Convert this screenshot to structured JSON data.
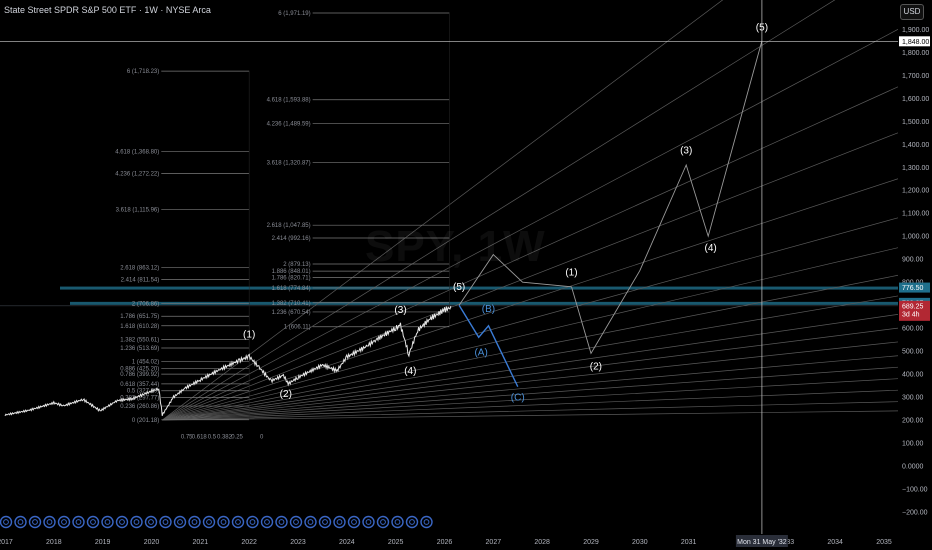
{
  "window": {
    "title": "State Street SPDR S&P 500 ETF · 1W · NYSE Arca",
    "watermark": "SPY, 1W",
    "currency": "USD"
  },
  "colors": {
    "background": "#000000",
    "price": "#e6e6e6",
    "wave_white": "#9a9a9a",
    "wave_blue": "#3a7bd5",
    "fan": "#5a5a5a",
    "fib": "#7a7a7a",
    "zone": "#1f6f8b",
    "price_badge": "#b22833",
    "crosshair": "#cfcfcf"
  },
  "chart_data": {
    "type": "line",
    "title": "State Street SPDR S&P 500 ETF · 1W · NYSE Arca",
    "xlim": [
      2017.0,
      2035.3
    ],
    "ylim": [
      -230,
      2000
    ],
    "x_ticks": [
      "2017",
      "2018",
      "2019",
      "2020",
      "2021",
      "2022",
      "2023",
      "2024",
      "2025",
      "2026",
      "2027",
      "2028",
      "2029",
      "2030",
      "2031",
      "2032",
      "2033",
      "2034",
      "2035"
    ],
    "y_ticks": [
      "1,900.00",
      "1,800.00",
      "1,700.00",
      "1,600.00",
      "1,500.00",
      "1,400.00",
      "1,300.00",
      "1,200.00",
      "1,100.00",
      "1,000.00",
      "900.00",
      "800.00",
      "700.00",
      "600.00",
      "500.00",
      "400.00",
      "300.00",
      "200.00",
      "100.00",
      "0.0000",
      "−100.00",
      "−200.00"
    ],
    "price_series": {
      "name": "SPY",
      "points": [
        [
          2017.0,
          222
        ],
        [
          2017.5,
          243
        ],
        [
          2018.0,
          275
        ],
        [
          2018.2,
          262
        ],
        [
          2018.6,
          290
        ],
        [
          2018.95,
          240
        ],
        [
          2019.3,
          285
        ],
        [
          2019.6,
          292
        ],
        [
          2019.95,
          322
        ],
        [
          2020.15,
          337
        ],
        [
          2020.22,
          222
        ],
        [
          2020.45,
          300
        ],
        [
          2020.7,
          340
        ],
        [
          2021.0,
          375
        ],
        [
          2021.4,
          420
        ],
        [
          2021.8,
          460
        ],
        [
          2022.0,
          477
        ],
        [
          2022.2,
          430
        ],
        [
          2022.45,
          370
        ],
        [
          2022.7,
          395
        ],
        [
          2022.8,
          358
        ],
        [
          2023.0,
          385
        ],
        [
          2023.5,
          440
        ],
        [
          2023.8,
          415
        ],
        [
          2024.0,
          475
        ],
        [
          2024.4,
          520
        ],
        [
          2024.6,
          550
        ],
        [
          2025.0,
          600
        ],
        [
          2025.1,
          612
        ],
        [
          2025.27,
          485
        ],
        [
          2025.45,
          590
        ],
        [
          2025.7,
          640
        ],
        [
          2026.0,
          680
        ],
        [
          2026.15,
          690
        ]
      ]
    },
    "wave_white": {
      "points": [
        [
          2026.3,
          700
        ],
        [
          2027.0,
          920
        ],
        [
          2027.6,
          800
        ],
        [
          2028.6,
          780
        ],
        [
          2029.0,
          490
        ],
        [
          2030.0,
          850
        ],
        [
          2030.95,
          1310
        ],
        [
          2031.4,
          1000
        ],
        [
          2032.5,
          1850
        ]
      ],
      "labels": [
        {
          "text": "(1)",
          "x": 2022.0,
          "y": 560
        },
        {
          "text": "(2)",
          "x": 2022.75,
          "y": 300
        },
        {
          "text": "(3)",
          "x": 2025.1,
          "y": 665
        },
        {
          "text": "(4)",
          "x": 2025.3,
          "y": 400
        },
        {
          "text": "(5)",
          "x": 2026.3,
          "y": 765
        },
        {
          "text": "(1)",
          "x": 2028.6,
          "y": 830
        },
        {
          "text": "(2)",
          "x": 2029.1,
          "y": 420
        },
        {
          "text": "(3)",
          "x": 2030.95,
          "y": 1360
        },
        {
          "text": "(4)",
          "x": 2031.45,
          "y": 935
        },
        {
          "text": "(5)",
          "x": 2032.5,
          "y": 1895
        }
      ]
    },
    "wave_blue": {
      "points": [
        [
          2026.3,
          700
        ],
        [
          2026.7,
          560
        ],
        [
          2026.9,
          610
        ],
        [
          2027.5,
          345
        ]
      ],
      "labels": [
        {
          "text": "(B)",
          "x": 2026.9,
          "y": 670
        },
        {
          "text": "(A)",
          "x": 2026.75,
          "y": 480
        },
        {
          "text": "(C)",
          "x": 2027.5,
          "y": 285
        }
      ]
    },
    "zone": {
      "upper": 776.5,
      "lower": 709.97
    },
    "current_price": {
      "value": "689.25",
      "countdown": "3d 4h"
    },
    "crosshair": {
      "x_label": "Mon 31 May '32",
      "y_label": "1,848.00",
      "x": 2032.5,
      "y": 1848
    },
    "fib_left": {
      "x_start": 2020.2,
      "x_end": 2022.0,
      "levels": [
        {
          "label": "6 (1,718.23)",
          "y": 1718.23
        },
        {
          "label": "4.618 (1,368.80)",
          "y": 1368.8
        },
        {
          "label": "4.236 (1,272.22)",
          "y": 1272.22
        },
        {
          "label": "3.618 (1,115.96)",
          "y": 1115.96
        },
        {
          "label": "2.618 (863.12)",
          "y": 863.12
        },
        {
          "label": "2.414 (811.54)",
          "y": 811.54
        },
        {
          "label": "2 (706.86)",
          "y": 706.86
        },
        {
          "label": "1.786 (651.75)",
          "y": 651.75
        },
        {
          "label": "1.618 (610.28)",
          "y": 610.28
        },
        {
          "label": "1.382 (550.61)",
          "y": 550.61
        },
        {
          "label": "1.236 (513.69)",
          "y": 513.69
        },
        {
          "label": "1 (454.02)",
          "y": 454.02
        },
        {
          "label": "0.886 (425.20)",
          "y": 425.2
        },
        {
          "label": "0.786 (399.92)",
          "y": 399.92
        },
        {
          "label": "0.618 (357.44)",
          "y": 357.44
        },
        {
          "label": "0.5 (327.60)",
          "y": 327.6
        },
        {
          "label": "0.382 (297.77)",
          "y": 297.77
        },
        {
          "label": "0.236 (260.86)",
          "y": 260.86
        },
        {
          "label": "0 (201.18)",
          "y": 201.18
        }
      ],
      "bottom_labels": [
        "0.75",
        "0.618",
        "0.5",
        "0.382",
        "0.25",
        "0"
      ]
    },
    "fib_right": {
      "x_start": 2023.3,
      "x_end": 2026.1,
      "levels": [
        {
          "label": "6 (1,971.19)",
          "y": 1971.19
        },
        {
          "label": "4.618 (1,593.88)",
          "y": 1593.88
        },
        {
          "label": "4.236 (1,489.59)",
          "y": 1489.59
        },
        {
          "label": "3.618 (1,320.87)",
          "y": 1320.87
        },
        {
          "label": "2.618 (1,047.85)",
          "y": 1047.85
        },
        {
          "label": "2.414 (992.16)",
          "y": 992.16
        },
        {
          "label": "2 (879.13)",
          "y": 879.13
        },
        {
          "label": "1.886 (848.01)",
          "y": 848.01
        },
        {
          "label": "1.786 (820.71)",
          "y": 820.71
        },
        {
          "label": "1.618 (774.84)",
          "y": 774.84
        },
        {
          "label": "1.382 (710.41)",
          "y": 710.41
        },
        {
          "label": "1.236 (670.54)",
          "y": 670.54
        },
        {
          "label": "1 (606.11)",
          "y": 606.11
        }
      ]
    },
    "fan": {
      "origin": [
        2020.22,
        200
      ],
      "endpoints_y": [
        2600,
        2200,
        1900,
        1650,
        1450,
        1250,
        1080,
        950,
        830,
        740,
        660,
        600,
        540,
        480,
        430,
        380,
        330,
        280,
        240
      ]
    },
    "bottom_markers_count": 30
  }
}
